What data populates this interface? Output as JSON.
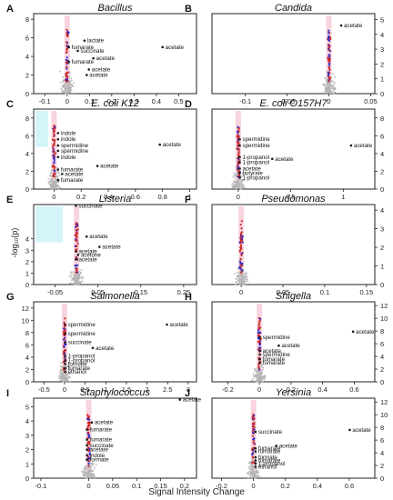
{
  "figure": {
    "y_axis_label": "-log₁₀(p)",
    "x_axis_label": "Signal Intensity Change"
  },
  "chart_data": [
    {
      "type": "scatter",
      "letter": "A",
      "title": "Bacillus",
      "italic_title": true,
      "xticks": [
        -0.1,
        0.0,
        0.1,
        0.2,
        0.3,
        0.4,
        0.5
      ],
      "xlim": [
        -0.15,
        0.58
      ],
      "yticks": [
        0,
        2,
        4,
        6,
        8
      ],
      "ylim": [
        0,
        8.6
      ],
      "labels": [
        {
          "text": "lactate",
          "x": 0.09,
          "y": 5.7
        },
        {
          "text": "fumarate",
          "x": 0.02,
          "y": 5.0
        },
        {
          "text": "succinate",
          "x": 0.06,
          "y": 4.6
        },
        {
          "text": "acetate",
          "x": 0.13,
          "y": 3.8
        },
        {
          "text": "fumarate",
          "x": 0.02,
          "y": 3.4
        },
        {
          "text": "acetate",
          "x": 0.11,
          "y": 2.6
        },
        {
          "text": "acetate",
          "x": 0.1,
          "y": 2.0
        },
        {
          "text": "acetate",
          "x": 0.44,
          "y": 5.0
        }
      ]
    },
    {
      "type": "scatter",
      "letter": "B",
      "title": "Candida",
      "italic_title": true,
      "xticks": [
        -0.1,
        -0.05,
        0.0,
        0.05
      ],
      "xlim": [
        -0.14,
        0.055
      ],
      "yticks": [
        0,
        1,
        2,
        3,
        4,
        5
      ],
      "ylim": [
        0,
        5.4
      ],
      "labels": [
        {
          "text": "acetate",
          "x": 0.018,
          "y": 4.6
        }
      ]
    },
    {
      "type": "scatter",
      "letter": "C",
      "title": "E. coli K12",
      "italic_title": true,
      "xticks": [
        0.0,
        0.2,
        0.4,
        0.6,
        0.8,
        1.0
      ],
      "xlim": [
        -0.15,
        1.05
      ],
      "yticks": [
        0,
        2,
        4,
        6,
        8
      ],
      "ylim": [
        0,
        9
      ],
      "labels": [
        {
          "text": "indole",
          "x": 0.05,
          "y": 6.3
        },
        {
          "text": "indole",
          "x": 0.05,
          "y": 5.6
        },
        {
          "text": "spermidine",
          "x": 0.05,
          "y": 4.9
        },
        {
          "text": "spermidine",
          "x": 0.05,
          "y": 4.3
        },
        {
          "text": "indole",
          "x": 0.05,
          "y": 3.6
        },
        {
          "text": "fumarate",
          "x": 0.05,
          "y": 2.2
        },
        {
          "text": "acetate",
          "x": 0.08,
          "y": 1.7
        },
        {
          "text": "fumarate",
          "x": 0.05,
          "y": 1.0
        },
        {
          "text": "acetate",
          "x": 0.34,
          "y": 2.6
        },
        {
          "text": "acetate",
          "x": 0.8,
          "y": 5.0
        }
      ]
    },
    {
      "type": "scatter",
      "letter": "D",
      "title": "E. coli O157H7",
      "italic_title": true,
      "xticks": [
        0.0,
        0.5,
        1.0
      ],
      "xlim": [
        -0.25,
        1.3
      ],
      "yticks": [
        0,
        2,
        4,
        6,
        8
      ],
      "ylim": [
        0,
        9
      ],
      "labels": [
        {
          "text": "spermidine",
          "x": 0.04,
          "y": 5.6
        },
        {
          "text": "spermidine",
          "x": 0.04,
          "y": 4.9
        },
        {
          "text": "1-propanol",
          "x": 0.04,
          "y": 3.6
        },
        {
          "text": "1-propanol",
          "x": 0.04,
          "y": 3.0
        },
        {
          "text": "acetate",
          "x": 0.04,
          "y": 2.3
        },
        {
          "text": "butyrate",
          "x": 0.04,
          "y": 1.8
        },
        {
          "text": "1-propanol",
          "x": 0.04,
          "y": 1.3
        },
        {
          "text": "acetate",
          "x": 0.35,
          "y": 3.4
        },
        {
          "text": "acetate",
          "x": 1.1,
          "y": 4.9
        }
      ]
    },
    {
      "type": "scatter",
      "letter": "E",
      "title": "Listeria",
      "italic_title": true,
      "xticks": [
        -0.05,
        0.05,
        0.15,
        0.25
      ],
      "xlim": [
        -0.1,
        0.28
      ],
      "yticks": [
        0,
        1,
        2,
        3,
        4
      ],
      "ylim": [
        0,
        7
      ],
      "labels": [
        {
          "text": "succinate",
          "x": 0.005,
          "y": 6.9
        },
        {
          "text": "acetate",
          "x": 0.03,
          "y": 4.2
        },
        {
          "text": "acetate",
          "x": 0.06,
          "y": 3.3
        },
        {
          "text": "acetate",
          "x": 0.005,
          "y": 2.9
        },
        {
          "text": "acetone",
          "x": 0.01,
          "y": 2.6
        },
        {
          "text": "acetate",
          "x": 0.005,
          "y": 2.2
        }
      ]
    },
    {
      "type": "scatter",
      "letter": "F",
      "title": "Pseudomonas",
      "italic_title": true,
      "xticks": [
        0.0,
        0.05,
        0.1,
        0.15
      ],
      "xlim": [
        -0.035,
        0.16
      ],
      "yticks": [
        0,
        1,
        2,
        3,
        4
      ],
      "ylim": [
        0,
        4.3
      ],
      "labels": []
    },
    {
      "type": "scatter",
      "letter": "G",
      "title": "Salmonella",
      "italic_title": true,
      "xticks": [
        -0.5,
        0.0,
        0.5,
        1.0,
        1.5,
        2.0,
        2.5,
        3.0
      ],
      "xlim": [
        -0.75,
        3.2
      ],
      "yticks": [
        0,
        2,
        4,
        6,
        8,
        10,
        12
      ],
      "ylim": [
        0,
        13
      ],
      "labels": [
        {
          "text": "spermidine",
          "x": 0.08,
          "y": 9.3
        },
        {
          "text": "spermidine",
          "x": 0.08,
          "y": 7.8
        },
        {
          "text": "succinate",
          "x": 0.08,
          "y": 6.4
        },
        {
          "text": "acetate",
          "x": 0.75,
          "y": 5.5
        },
        {
          "text": "1-propanol",
          "x": 0.08,
          "y": 4.2
        },
        {
          "text": "1-propanol",
          "x": 0.08,
          "y": 3.5
        },
        {
          "text": "formate",
          "x": 0.08,
          "y": 2.9
        },
        {
          "text": "fumarate",
          "x": 0.08,
          "y": 2.2
        },
        {
          "text": "ethanol",
          "x": 0.08,
          "y": 1.6
        },
        {
          "text": "acetate",
          "x": 2.55,
          "y": 9.3
        }
      ]
    },
    {
      "type": "scatter",
      "letter": "H",
      "title": "Shigella",
      "italic_title": true,
      "xticks": [
        -0.2,
        0.0,
        0.2,
        0.4,
        0.6
      ],
      "xlim": [
        -0.3,
        0.73
      ],
      "yticks": [
        0,
        2,
        4,
        6,
        8,
        10,
        12
      ],
      "ylim": [
        0,
        12.6
      ],
      "labels": [
        {
          "text": "spermidine",
          "x": 0.02,
          "y": 7.0
        },
        {
          "text": "acetate",
          "x": 0.14,
          "y": 5.7
        },
        {
          "text": "acetate",
          "x": 0.02,
          "y": 4.9
        },
        {
          "text": "spermidine",
          "x": 0.02,
          "y": 4.3
        },
        {
          "text": "fumarate",
          "x": 0.02,
          "y": 3.6
        },
        {
          "text": "fumarate",
          "x": 0.02,
          "y": 3.0
        },
        {
          "text": "acetate",
          "x": 0.61,
          "y": 7.9
        }
      ]
    },
    {
      "type": "scatter",
      "letter": "I",
      "title": "Staphylococcus",
      "italic_title": true,
      "xticks": [
        -0.1,
        0.0,
        0.05,
        0.1,
        0.15,
        0.2
      ],
      "xlim": [
        -0.115,
        0.225
      ],
      "yticks": [
        0,
        1,
        2,
        3,
        4,
        5
      ],
      "ylim": [
        0,
        5.6
      ],
      "labels": [
        {
          "text": "acetate",
          "x": 0.196,
          "y": 5.5
        },
        {
          "text": "acetate",
          "x": 0.012,
          "y": 3.9
        },
        {
          "text": "fumarate",
          "x": 0.002,
          "y": 3.4
        },
        {
          "text": "fumarate",
          "x": 0.002,
          "y": 2.7
        },
        {
          "text": "succinate",
          "x": 0.002,
          "y": 2.3
        },
        {
          "text": "acetate",
          "x": 0.002,
          "y": 2.0
        },
        {
          "text": "indole",
          "x": 0.002,
          "y": 1.6
        },
        {
          "text": "formate",
          "x": 0.002,
          "y": 1.3
        }
      ]
    },
    {
      "type": "scatter",
      "letter": "J",
      "title": "Yersinia",
      "italic_title": true,
      "xticks": [
        -0.2,
        0.0,
        0.2,
        0.4,
        0.6
      ],
      "xlim": [
        -0.26,
        0.76
      ],
      "yticks": [
        0,
        2,
        4,
        6,
        8,
        10,
        12
      ],
      "ylim": [
        0,
        12.6
      ],
      "labels": [
        {
          "text": "succinate",
          "x": 0.03,
          "y": 7.3
        },
        {
          "text": "acetate",
          "x": 0.16,
          "y": 5.1
        },
        {
          "text": "fumarate",
          "x": 0.03,
          "y": 4.7
        },
        {
          "text": "fumarate",
          "x": 0.03,
          "y": 4.2
        },
        {
          "text": "formate",
          "x": 0.03,
          "y": 3.3
        },
        {
          "text": "fumarate",
          "x": 0.03,
          "y": 2.8
        },
        {
          "text": "1-propanol",
          "x": 0.03,
          "y": 2.3
        },
        {
          "text": "ethanol",
          "x": 0.03,
          "y": 1.8
        },
        {
          "text": "acetate",
          "x": 0.62,
          "y": 7.6
        }
      ]
    }
  ],
  "colors": {
    "gray": "#b4b4b4",
    "red": "#cc2a2a",
    "blue": "#2b2bcc",
    "pink": "#f4b8c8",
    "cyan": "#9ee6f2",
    "axis": "#222222"
  }
}
